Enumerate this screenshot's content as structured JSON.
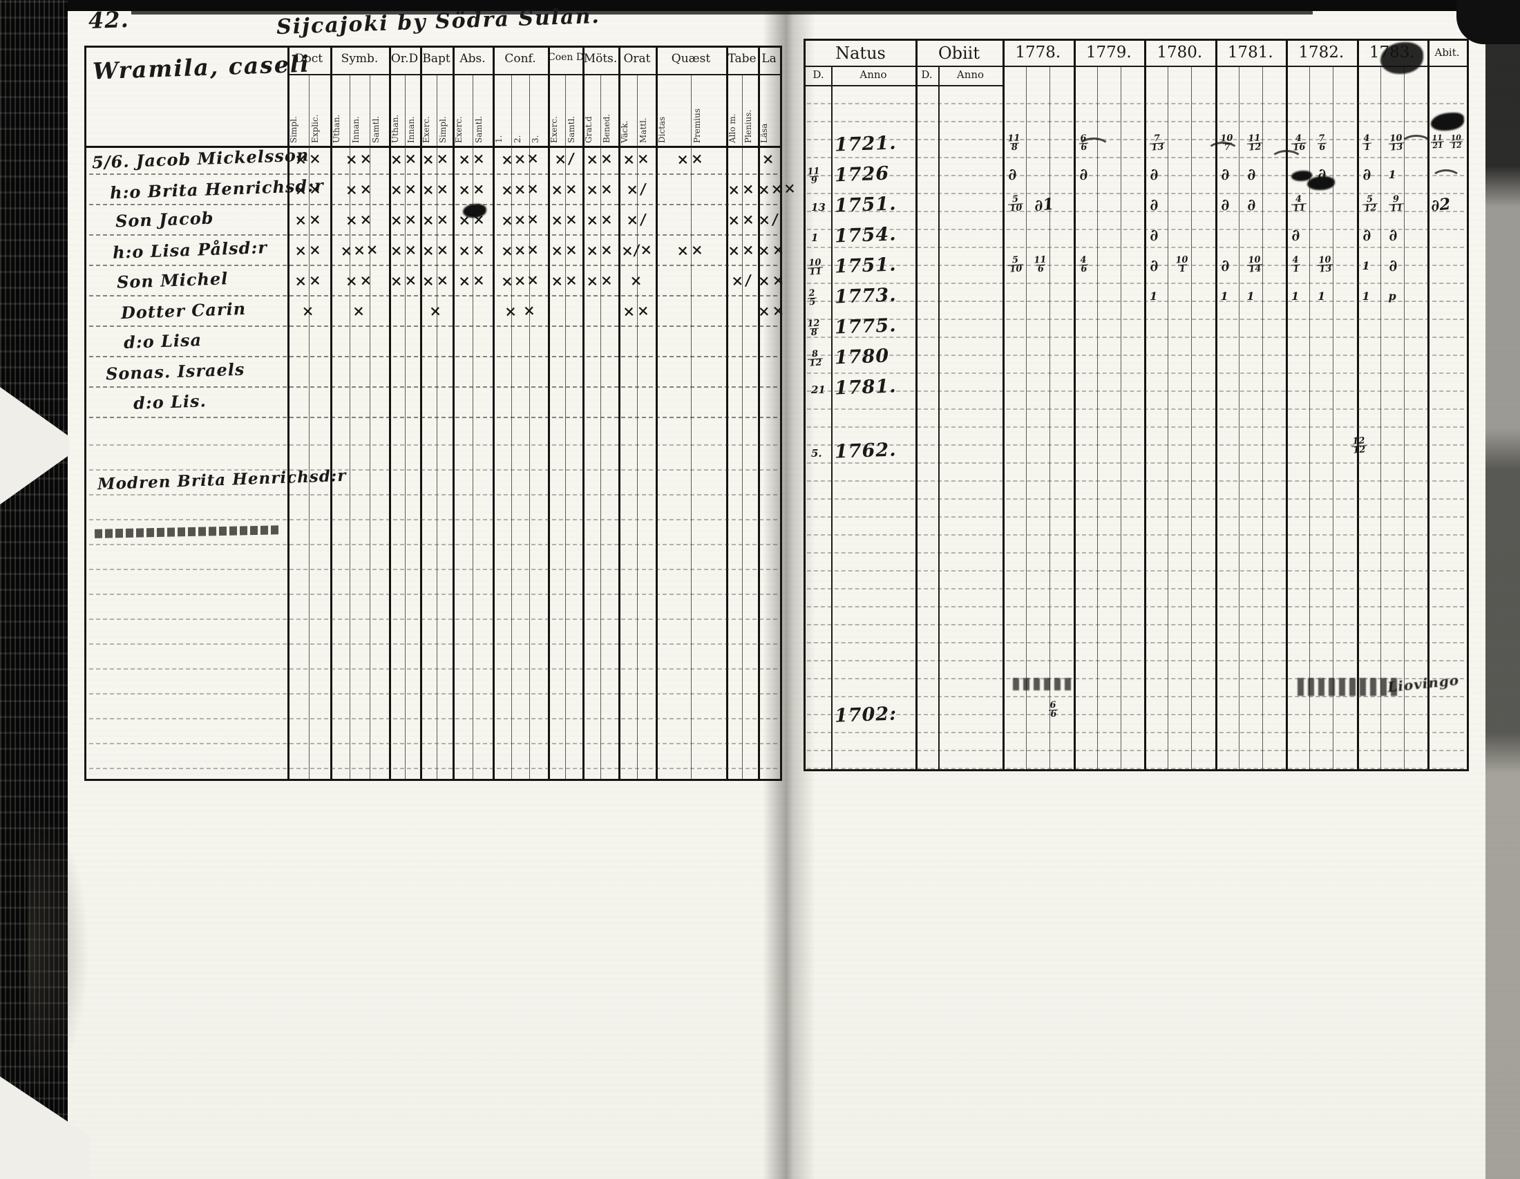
{
  "scan": {
    "page_number": "42.",
    "title": "Sijcajoki by Södra Sulan.",
    "corner_note": "Liovingo"
  },
  "left_table": {
    "family_header": "Wramila, caseli",
    "columns": [
      {
        "label": "Doct",
        "subs": [
          "Simpl.",
          "Explic."
        ]
      },
      {
        "label": "Symb.",
        "subs": [
          "Uthan.",
          "Innan.",
          "Samtl."
        ]
      },
      {
        "label": "Or.D",
        "subs": [
          "Uthan.",
          "Innan."
        ]
      },
      {
        "label": "Bapt",
        "subs": [
          "Exerc.",
          "Simpl."
        ]
      },
      {
        "label": "Abs.",
        "subs": [
          "Exerc.",
          "Samtl."
        ]
      },
      {
        "label": "Conf.",
        "subs": [
          "1.",
          "2.",
          "3."
        ]
      },
      {
        "label": "Coen D",
        "subs": [
          "Exerc.",
          "Samtl."
        ]
      },
      {
        "label": "Möts.",
        "subs": [
          "Grat.d",
          "Bened."
        ]
      },
      {
        "label": "Orat",
        "subs": [
          "Väck.",
          "Mattl."
        ]
      },
      {
        "label": "Quæst",
        "subs": [
          "Dictas",
          "Premius"
        ]
      },
      {
        "label": "Tabe",
        "subs": [
          "Allo m.",
          "Plenius."
        ]
      },
      {
        "label": "La",
        "subs": [
          "Läsa"
        ]
      }
    ],
    "rows": [
      {
        "name": "5/6. Jacob Mickelsson",
        "indent": 0,
        "marks": [
          "××",
          "××",
          "××",
          "××",
          "××",
          "×××",
          "×/",
          "××",
          "××",
          "××",
          "",
          "×"
        ]
      },
      {
        "name": "h:o Brita Henrichsd:r",
        "indent": 26,
        "marks": [
          "××",
          "××",
          "××",
          "××",
          "××",
          "×××",
          "××",
          "××",
          "×/",
          "",
          "××",
          "×××"
        ]
      },
      {
        "name": "Son Jacob",
        "indent": 34,
        "marks": [
          "××",
          "××",
          "××",
          "××",
          "××",
          "×××",
          "××",
          "××",
          "×/",
          "",
          "××",
          "×/"
        ]
      },
      {
        "name": "h:o Lisa Pålsd:r",
        "indent": 30,
        "marks": [
          "××",
          "×××",
          "××",
          "××",
          "××",
          "×××",
          "××",
          "××",
          "×/×",
          "××",
          "××",
          "××"
        ]
      },
      {
        "name": "Son Michel",
        "indent": 36,
        "marks": [
          "××",
          "××",
          "××",
          "××",
          "××",
          "×××",
          "××",
          "××",
          "×",
          "",
          "×/",
          "××"
        ]
      },
      {
        "name": "Dotter Carin",
        "indent": 42,
        "marks": [
          "×",
          "×",
          "",
          "×",
          "",
          "× ×",
          "",
          "",
          "××",
          "",
          "",
          "××"
        ]
      },
      {
        "name": "d:o Lisa",
        "indent": 46,
        "marks": [
          "",
          "",
          "",
          "",
          "",
          "",
          "",
          "",
          "",
          "",
          "",
          ""
        ]
      },
      {
        "name": "Sonas. Israels",
        "indent": 20,
        "marks": [
          "",
          "",
          "",
          "",
          "",
          "",
          "",
          "",
          "",
          "",
          "",
          ""
        ]
      },
      {
        "name": "d:o Lis.",
        "indent": 60,
        "marks": [
          "",
          "",
          "",
          "",
          "",
          "",
          "",
          "",
          "",
          "",
          "",
          ""
        ]
      }
    ],
    "extra_entry": "Modren Brita Henrichsd:r"
  },
  "right_table": {
    "natus_label": "Natus",
    "obiit_label": "Obiit",
    "day_label": "D.",
    "anno_label": "Anno",
    "abiit_label": "Abit.",
    "years": [
      "1778.",
      "1779.",
      "1780.",
      "1781.",
      "1782.",
      "1783."
    ],
    "records": [
      {
        "d": "",
        "anno": "1721.",
        "marks": [
          [
            "11/8"
          ],
          [
            "6/6"
          ],
          [
            "7/13"
          ],
          [
            "10/7",
            "11/12"
          ],
          [
            "4/16",
            "7/6"
          ],
          [
            "4/1",
            "10/13"
          ]
        ],
        "abiit": [
          "11/21",
          "10/12"
        ]
      },
      {
        "d": "11/9",
        "anno": "1726",
        "marks": [
          [
            "∂"
          ],
          [
            "∂"
          ],
          [
            "∂"
          ],
          [
            "∂",
            "∂"
          ],
          [
            "✱",
            "∂"
          ],
          [
            "∂",
            "1"
          ]
        ],
        "abiit": [
          "~"
        ]
      },
      {
        "d": "13",
        "anno": "1751.",
        "marks": [
          [
            "5/10",
            "∂1"
          ],
          [],
          [
            "∂"
          ],
          [
            "∂",
            "∂"
          ],
          [
            "4/11"
          ],
          [
            "5/12",
            "9/11"
          ]
        ],
        "abiit": [
          "∂2"
        ]
      },
      {
        "d": "1",
        "anno": "1754.",
        "marks": [
          [],
          [],
          [
            "∂"
          ],
          [],
          [
            "∂"
          ],
          [
            "∂",
            "∂"
          ]
        ],
        "abiit": []
      },
      {
        "d": "10/11",
        "anno": "1751.",
        "marks": [
          [
            "5/10",
            "11/6"
          ],
          [
            "4/6"
          ],
          [
            "∂",
            "10/1"
          ],
          [
            "∂",
            "10/14"
          ],
          [
            "4/1",
            "10/13"
          ],
          [
            "1",
            "∂"
          ]
        ],
        "abiit": []
      },
      {
        "d": "2/5",
        "anno": "1773.",
        "marks": [
          [],
          [],
          [
            "1"
          ],
          [
            "1",
            "1"
          ],
          [
            "1",
            "1"
          ],
          [
            "1",
            "p"
          ]
        ],
        "abiit": []
      },
      {
        "d": "12/8",
        "anno": "1775.",
        "marks": [
          [],
          [],
          [],
          [],
          [],
          []
        ],
        "abiit": []
      },
      {
        "d": "8/12",
        "anno": "1780",
        "marks": [
          [],
          [],
          [],
          [],
          [],
          []
        ],
        "abiit": []
      },
      {
        "d": "21",
        "anno": "1781.",
        "marks": [
          [],
          [],
          [],
          [],
          [],
          []
        ],
        "abiit": []
      }
    ],
    "late_records": [
      {
        "d": "5.",
        "anno": "1762.",
        "mark": "12/12",
        "year_index": 5
      },
      {
        "d": "",
        "anno": "1702:",
        "mark": "6/6",
        "year_index": 1
      }
    ]
  }
}
